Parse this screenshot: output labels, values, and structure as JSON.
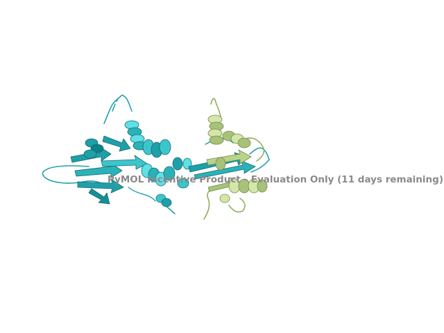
{
  "scene": {
    "background": "#ffffff",
    "subject": "protein-cartoon",
    "chains": [
      {
        "id": "A",
        "style": "cartoon",
        "color": "#1fa0a8",
        "highlight": "#5ee0e6",
        "shadow": "#0f6c72"
      },
      {
        "id": "B",
        "style": "cartoon",
        "color": "#a8c27a",
        "highlight": "#d4e6a8",
        "shadow": "#6f8a48"
      }
    ]
  },
  "watermark": {
    "text": "PyMOL Incentive Product - Evaluation Only (11 days remaining)",
    "color": "#8a8a8a"
  }
}
